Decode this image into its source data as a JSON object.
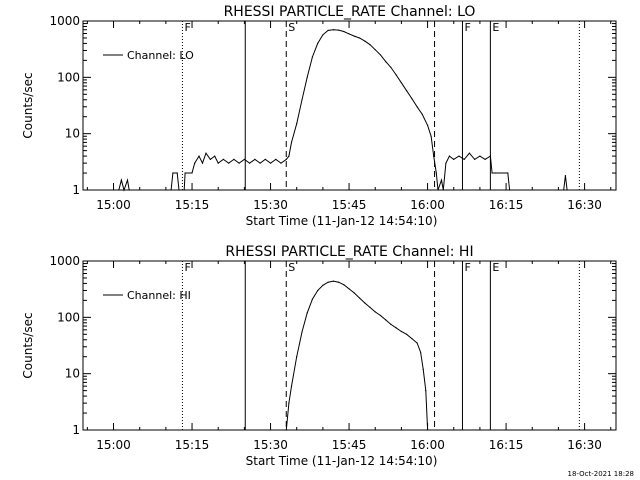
{
  "footer_timestamp": "18-Oct-2021 18:28",
  "chart_data": [
    {
      "type": "line",
      "title": "RHESSI PARTICLE_RATE Channel: LO",
      "xlabel": "Start Time (11-Jan-12 14:54:10)",
      "ylabel": "Counts/sec",
      "xlim": [
        "14:54:10",
        "16:36:00"
      ],
      "ylim": [
        1,
        1000
      ],
      "yscale": "log",
      "xticks": [
        "15:00",
        "15:15",
        "15:30",
        "15:45",
        "16:00",
        "16:15",
        "16:30"
      ],
      "yticks": [
        "1",
        "10",
        "100",
        "1000"
      ],
      "legend": {
        "placement": "top-left",
        "entries": [
          "Channel: LO"
        ]
      },
      "markers": [
        {
          "time": "15:13:10",
          "style": "dotted",
          "label": "F"
        },
        {
          "time": "15:25:10",
          "style": "solid",
          "label": ""
        },
        {
          "time": "15:33:00",
          "style": "dashed",
          "label": "S"
        },
        {
          "time": "16:01:20",
          "style": "dashed",
          "label": ""
        },
        {
          "time": "16:06:40",
          "style": "solid",
          "label": "F"
        },
        {
          "time": "16:12:00",
          "style": "solid",
          "label": "E"
        },
        {
          "time": "16:29:00",
          "style": "dotted",
          "label": ""
        }
      ],
      "series": [
        {
          "name": "Channel: LO",
          "points": [
            [
              "15:01:00",
              1
            ],
            [
              "15:01:30",
              1.5
            ],
            [
              "15:02:00",
              1
            ],
            [
              "15:02:40",
              1.5
            ],
            [
              "15:03:00",
              1
            ],
            [
              "15:11:00",
              1
            ],
            [
              "15:11:20",
              2
            ],
            [
              "15:12:10",
              2
            ],
            [
              "15:12:30",
              1
            ],
            [
              "15:13:30",
              1
            ],
            [
              "15:13:40",
              2
            ],
            [
              "15:15:00",
              2
            ],
            [
              "15:15:30",
              3
            ],
            [
              "15:16:20",
              4
            ],
            [
              "15:17:00",
              3
            ],
            [
              "15:17:40",
              4.5
            ],
            [
              "15:18:30",
              3.5
            ],
            [
              "15:19:20",
              4
            ],
            [
              "15:20:00",
              3
            ],
            [
              "15:21:00",
              3.5
            ],
            [
              "15:22:00",
              3
            ],
            [
              "15:23:00",
              3.5
            ],
            [
              "15:24:00",
              3
            ],
            [
              "15:25:00",
              3.5
            ],
            [
              "15:26:00",
              3
            ],
            [
              "15:27:00",
              3.5
            ],
            [
              "15:28:00",
              3
            ],
            [
              "15:29:00",
              3.5
            ],
            [
              "15:30:00",
              3
            ],
            [
              "15:31:00",
              3.5
            ],
            [
              "15:32:00",
              3
            ],
            [
              "15:33:00",
              3.5
            ],
            [
              "15:33:30",
              4
            ],
            [
              "15:34:00",
              7
            ],
            [
              "15:35:00",
              15
            ],
            [
              "15:36:00",
              40
            ],
            [
              "15:37:00",
              100
            ],
            [
              "15:38:00",
              230
            ],
            [
              "15:39:00",
              400
            ],
            [
              "15:40:00",
              570
            ],
            [
              "15:41:00",
              680
            ],
            [
              "15:42:00",
              700
            ],
            [
              "15:43:00",
              690
            ],
            [
              "15:44:00",
              650
            ],
            [
              "15:45:00",
              590
            ],
            [
              "15:46:00",
              540
            ],
            [
              "15:47:00",
              500
            ],
            [
              "15:48:00",
              440
            ],
            [
              "15:49:00",
              380
            ],
            [
              "15:50:00",
              310
            ],
            [
              "15:51:00",
              250
            ],
            [
              "15:52:00",
              190
            ],
            [
              "15:53:00",
              150
            ],
            [
              "15:54:00",
              110
            ],
            [
              "15:55:00",
              80
            ],
            [
              "15:56:00",
              58
            ],
            [
              "15:57:00",
              42
            ],
            [
              "15:58:00",
              30
            ],
            [
              "15:59:00",
              22
            ],
            [
              "16:00:00",
              14
            ],
            [
              "16:00:40",
              9
            ],
            [
              "16:01:10",
              4
            ],
            [
              "16:01:40",
              2
            ],
            [
              "16:02:00",
              1
            ],
            [
              "16:02:40",
              1.5
            ],
            [
              "16:03:00",
              1
            ],
            [
              "16:03:30",
              3
            ],
            [
              "16:04:10",
              4
            ],
            [
              "16:05:00",
              3.5
            ],
            [
              "16:06:00",
              4
            ],
            [
              "16:07:00",
              3.5
            ],
            [
              "16:08:00",
              4.5
            ],
            [
              "16:09:00",
              3.5
            ],
            [
              "16:10:00",
              4
            ],
            [
              "16:11:00",
              3.5
            ],
            [
              "16:12:00",
              4
            ],
            [
              "16:12:20",
              2
            ],
            [
              "16:13:00",
              2
            ],
            [
              "16:15:20",
              2
            ],
            [
              "16:15:40",
              1
            ],
            [
              "16:26:00",
              1
            ],
            [
              "16:26:20",
              1.8
            ],
            [
              "16:26:40",
              1
            ],
            [
              "16:36:00",
              1
            ]
          ]
        }
      ]
    },
    {
      "type": "line",
      "title": "RHESSI PARTICLE_RATE Channel: HI",
      "xlabel": "Start Time (11-Jan-12 14:54:10)",
      "ylabel": "Counts/sec",
      "xlim": [
        "14:54:10",
        "16:36:00"
      ],
      "ylim": [
        1,
        1000
      ],
      "yscale": "log",
      "xticks": [
        "15:00",
        "15:15",
        "15:30",
        "15:45",
        "16:00",
        "16:15",
        "16:30"
      ],
      "yticks": [
        "1",
        "10",
        "100",
        "1000"
      ],
      "legend": {
        "placement": "top-left",
        "entries": [
          "Channel: HI"
        ]
      },
      "markers": [
        {
          "time": "15:13:10",
          "style": "dotted",
          "label": "F"
        },
        {
          "time": "15:25:10",
          "style": "solid",
          "label": ""
        },
        {
          "time": "15:33:00",
          "style": "dashed",
          "label": "S"
        },
        {
          "time": "16:01:20",
          "style": "dashed",
          "label": ""
        },
        {
          "time": "16:06:40",
          "style": "solid",
          "label": "F"
        },
        {
          "time": "16:12:00",
          "style": "solid",
          "label": "E"
        },
        {
          "time": "16:29:00",
          "style": "dotted",
          "label": ""
        }
      ],
      "series": [
        {
          "name": "Channel: HI",
          "points": [
            [
              "15:33:00",
              1
            ],
            [
              "15:33:30",
              3
            ],
            [
              "15:34:00",
              6
            ],
            [
              "15:35:00",
              20
            ],
            [
              "15:36:00",
              55
            ],
            [
              "15:37:00",
              120
            ],
            [
              "15:38:00",
              210
            ],
            [
              "15:39:00",
              300
            ],
            [
              "15:40:00",
              370
            ],
            [
              "15:41:00",
              420
            ],
            [
              "15:42:00",
              440
            ],
            [
              "15:43:00",
              420
            ],
            [
              "15:44:00",
              380
            ],
            [
              "15:45:00",
              320
            ],
            [
              "15:46:00",
              270
            ],
            [
              "15:47:00",
              220
            ],
            [
              "15:48:00",
              180
            ],
            [
              "15:49:00",
              150
            ],
            [
              "15:50:00",
              125
            ],
            [
              "15:51:00",
              108
            ],
            [
              "15:52:00",
              90
            ],
            [
              "15:53:00",
              75
            ],
            [
              "15:54:00",
              65
            ],
            [
              "15:55:00",
              56
            ],
            [
              "15:56:00",
              50
            ],
            [
              "15:57:00",
              42
            ],
            [
              "15:58:00",
              35
            ],
            [
              "15:58:40",
              24
            ],
            [
              "15:59:10",
              12
            ],
            [
              "15:59:40",
              5
            ],
            [
              "16:00:00",
              1
            ]
          ]
        }
      ]
    }
  ]
}
